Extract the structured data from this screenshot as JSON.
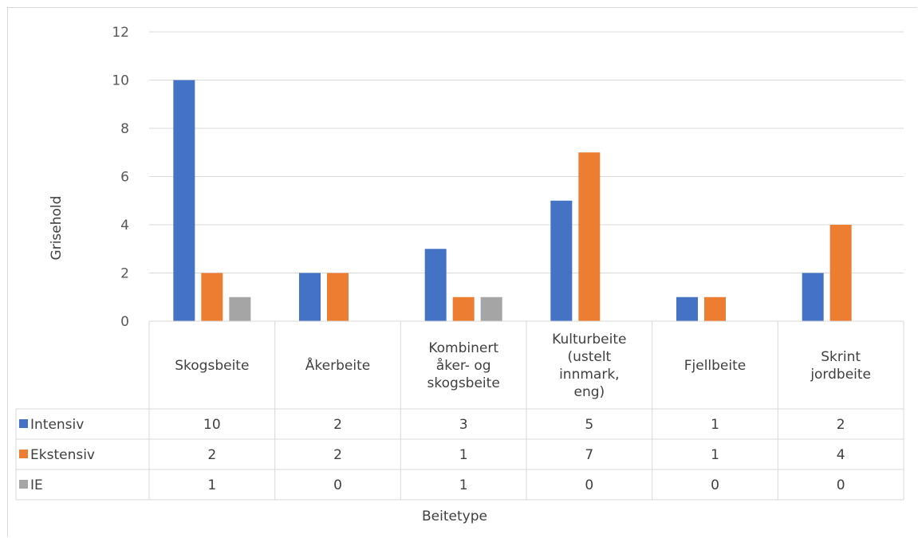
{
  "chart_data": {
    "type": "bar",
    "xlabel": "Beitetype",
    "ylabel": "Grisehold",
    "ylim": [
      0,
      12
    ],
    "yticks": [
      "0",
      "2",
      "4",
      "6",
      "8",
      "10",
      "12"
    ],
    "grid": true,
    "categories": [
      [
        "Skogsbeite"
      ],
      [
        "Åkerbeite"
      ],
      [
        "Kombinert",
        "åker- og",
        "skogsbeite"
      ],
      [
        "Kulturbeite",
        "(ustelt",
        "innmark,",
        "eng)"
      ],
      [
        "Fjellbeite"
      ],
      [
        "Skrint",
        "jordbeite"
      ]
    ],
    "series": [
      {
        "name": "Intensiv",
        "color": "#4472c4",
        "values": [
          10,
          2,
          3,
          5,
          1,
          2
        ]
      },
      {
        "name": "Ekstensiv",
        "color": "#ed7d31",
        "values": [
          2,
          2,
          1,
          7,
          1,
          4
        ]
      },
      {
        "name": "IE",
        "color": "#a5a5a5",
        "values": [
          1,
          0,
          1,
          0,
          0,
          0
        ]
      }
    ],
    "legend": "data-table"
  }
}
